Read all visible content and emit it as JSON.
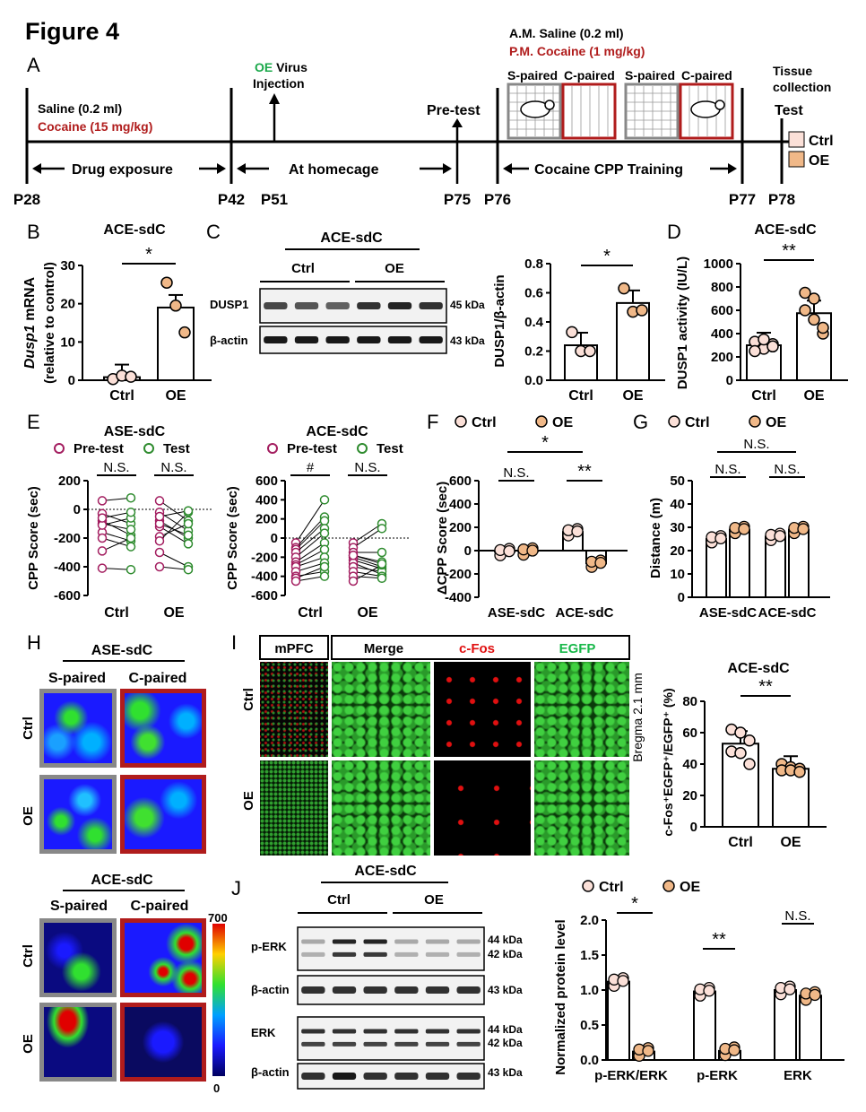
{
  "figure_title": "Figure 4",
  "panels": {
    "A": "A",
    "B": "B",
    "C": "C",
    "D": "D",
    "E": "E",
    "F": "F",
    "G": "G",
    "H": "H",
    "I": "I",
    "J": "J"
  },
  "timeline": {
    "saline_early": "Saline (0.2 ml)",
    "cocaine_early": "Cocaine (15 mg/kg)",
    "virus_prefix": "OE",
    "virus_suffix": " Virus",
    "injection": "Injection",
    "pretest": "Pre-test",
    "am_saline": "A.M. Saline (0.2 ml)",
    "pm_cocaine": "P.M. Cocaine (1 mg/kg)",
    "s_paired": "S-paired",
    "c_paired": "C-paired",
    "tissue1": "Tissue",
    "tissue2": "collection",
    "test": "Test",
    "seg1": "Drug exposure",
    "seg2": "At homecage",
    "seg3": "Cocaine CPP Training",
    "days": [
      "P28",
      "P42",
      "P51",
      "P75",
      "P76",
      "P77",
      "P78"
    ],
    "legend": [
      "Ctrl",
      "OE"
    ]
  },
  "colors": {
    "ctrl_fill": "#fbe0d8",
    "oe_fill": "#f0b888",
    "pretest": "#a31d5f",
    "test": "#2e8b2e",
    "cocaine_red": "#b01c1c",
    "virus_green": "#1aa84a"
  },
  "panel_B": {
    "title": "ACE-sdC",
    "ylabel_italic": "Dusp1",
    "ylabel_rest": " mRNA",
    "ylabel2": "(relative to control)",
    "yticks": [
      "0",
      "10",
      "20",
      "30"
    ],
    "x": [
      "Ctrl",
      "OE"
    ],
    "sig": "*"
  },
  "panel_C": {
    "title": "ACE-sdC",
    "groups": [
      "Ctrl",
      "OE"
    ],
    "rows": [
      "DUSP1",
      "β-actin"
    ],
    "kda": [
      "45 kDa",
      "43 kDa"
    ],
    "ylabel": "DUSP1/β-actin",
    "yticks": [
      "0.0",
      "0.2",
      "0.4",
      "0.6",
      "0.8"
    ],
    "x": [
      "Ctrl",
      "OE"
    ],
    "sig": "*"
  },
  "panel_D": {
    "title": "ACE-sdC",
    "ylabel": "DUSP1 activity (IU/L)",
    "yticks": [
      "0",
      "200",
      "400",
      "600",
      "800",
      "1000"
    ],
    "x": [
      "Ctrl",
      "OE"
    ],
    "sig": "**"
  },
  "panel_E": {
    "left_title": "ASE-sdC",
    "right_title": "ACE-sdC",
    "legend": [
      "Pre-test",
      "Test"
    ],
    "ylabel": "CPP Score (sec)",
    "left_yticks": [
      "-600",
      "-400",
      "-200",
      "0",
      "200"
    ],
    "right_yticks": [
      "-600",
      "-400",
      "-200",
      "0",
      "200",
      "400",
      "600"
    ],
    "x": [
      "Ctrl",
      "OE"
    ],
    "left_sig": [
      "N.S.",
      "N.S."
    ],
    "right_sig": [
      "#",
      "N.S."
    ]
  },
  "panel_F": {
    "legend": [
      "Ctrl",
      "OE"
    ],
    "ylabel": "ΔCPP Score (sec)",
    "yticks": [
      "-400",
      "-200",
      "0",
      "200",
      "400",
      "600"
    ],
    "x": [
      "ASE-sdC",
      "ACE-sdC"
    ],
    "sig_top": "*",
    "sig": [
      "N.S.",
      "**"
    ]
  },
  "panel_G": {
    "legend": [
      "Ctrl",
      "OE"
    ],
    "ylabel": "Distance (m)",
    "yticks": [
      "0",
      "10",
      "20",
      "30",
      "40",
      "50"
    ],
    "x": [
      "ASE-sdC",
      "ACE-sdC"
    ],
    "sig_top": "N.S.",
    "sig": [
      "N.S.",
      "N.S."
    ]
  },
  "panel_H": {
    "top_title": "ASE-sdC",
    "bottom_title": "ACE-sdC",
    "cols": [
      "S-paired",
      "C-paired"
    ],
    "rows": [
      "Ctrl",
      "OE"
    ],
    "scale": [
      "700",
      "0"
    ]
  },
  "panel_I": {
    "headers": [
      "mPFC",
      "Merge",
      "c-Fos",
      "EGFP"
    ],
    "rows": [
      "Ctrl",
      "OE"
    ],
    "bregma": "Bregma 2.1 mm",
    "title": "ACE-sdC",
    "ylabel": "c-Fos⁺EGFP⁺/EGFP⁺ (%)",
    "yticks": [
      "0",
      "20",
      "40",
      "60",
      "80"
    ],
    "x": [
      "Ctrl",
      "OE"
    ],
    "sig": "**"
  },
  "panel_J": {
    "title": "ACE-sdC",
    "groups": [
      "Ctrl",
      "OE"
    ],
    "rows": [
      "p-ERK",
      "β-actin",
      "ERK",
      "β-actin"
    ],
    "kda": [
      [
        "44 kDa",
        "42 kDa"
      ],
      [
        "43 kDa"
      ],
      [
        "44 kDa",
        "42 kDa"
      ],
      [
        "43 kDa"
      ]
    ],
    "legend": [
      "Ctrl",
      "OE"
    ],
    "ylabel": "Normalized protein level",
    "yticks": [
      "0.0",
      "0.5",
      "1.0",
      "1.5",
      "2.0"
    ],
    "x": [
      "p-ERK/ERK",
      "p-ERK",
      "ERK"
    ],
    "sig": [
      "*",
      "**",
      "N.S."
    ]
  },
  "chart_data": [
    {
      "panel": "B",
      "type": "bar",
      "categories": [
        "Ctrl",
        "OE"
      ],
      "values": [
        0.8,
        19
      ],
      "points": [
        [
          0.3,
          1.2,
          0.9
        ],
        [
          25.5,
          19.5,
          12.5
        ]
      ],
      "ylim": [
        0,
        30
      ]
    },
    {
      "panel": "C",
      "type": "bar",
      "categories": [
        "Ctrl",
        "OE"
      ],
      "values": [
        0.24,
        0.53
      ],
      "points": [
        [
          0.33,
          0.2,
          0.2
        ],
        [
          0.63,
          0.47,
          0.48
        ]
      ],
      "ylim": [
        0,
        0.8
      ]
    },
    {
      "panel": "D",
      "type": "bar",
      "categories": [
        "Ctrl",
        "OE"
      ],
      "values": [
        300,
        575
      ],
      "points": [
        [
          330,
          270,
          310,
          250,
          350,
          290
        ],
        [
          750,
          520,
          400,
          600,
          700,
          450
        ]
      ],
      "ylim": [
        0,
        1000
      ]
    },
    {
      "panel": "E-left",
      "type": "line",
      "categories": [
        "Ctrl",
        "OE"
      ],
      "pairs": {
        "Ctrl": [
          [
            60,
            80
          ],
          [
            -30,
            -100
          ],
          [
            -80,
            -180
          ],
          [
            -100,
            -140
          ],
          [
            -160,
            -220
          ],
          [
            -200,
            -260
          ],
          [
            -290,
            -200
          ],
          [
            -410,
            -420
          ],
          [
            -110,
            -60
          ],
          [
            -60,
            -20
          ]
        ],
        "OE": [
          [
            60,
            -80
          ],
          [
            -20,
            -150
          ],
          [
            -80,
            -200
          ],
          [
            -120,
            -240
          ],
          [
            -190,
            -100
          ],
          [
            -220,
            -20
          ],
          [
            -300,
            -400
          ],
          [
            -400,
            -420
          ],
          [
            -100,
            -180
          ],
          [
            -50,
            -10
          ]
        ]
      },
      "ylim": [
        -600,
        200
      ]
    },
    {
      "panel": "E-right",
      "type": "line",
      "categories": [
        "Ctrl",
        "OE"
      ],
      "pairs": {
        "Ctrl": [
          [
            -50,
            400
          ],
          [
            -100,
            220
          ],
          [
            -120,
            180
          ],
          [
            -150,
            100
          ],
          [
            -200,
            50
          ],
          [
            -250,
            -50
          ],
          [
            -280,
            -120
          ],
          [
            -300,
            -200
          ],
          [
            -350,
            -260
          ],
          [
            -400,
            -350
          ],
          [
            -420,
            -300
          ],
          [
            -450,
            -400
          ]
        ],
        "OE": [
          [
            -50,
            150
          ],
          [
            -100,
            100
          ],
          [
            -150,
            -150
          ],
          [
            -180,
            -250
          ],
          [
            -200,
            -300
          ],
          [
            -230,
            -320
          ],
          [
            -260,
            -380
          ],
          [
            -300,
            -350
          ],
          [
            -350,
            -400
          ],
          [
            -400,
            -420
          ],
          [
            -450,
            -280
          ],
          [
            -180,
            -270
          ]
        ]
      },
      "ylim": [
        -600,
        600
      ]
    },
    {
      "panel": "F",
      "type": "bar",
      "categories": [
        "ASE-sdC",
        "ACE-sdC"
      ],
      "series": [
        {
          "name": "Ctrl",
          "values": [
            -10,
            160
          ]
        },
        {
          "name": "OE",
          "values": [
            -5,
            -110
          ]
        }
      ],
      "ylim": [
        -400,
        600
      ]
    },
    {
      "panel": "G",
      "type": "bar",
      "categories": [
        "ASE-sdC",
        "ACE-sdC"
      ],
      "series": [
        {
          "name": "Ctrl",
          "values": [
            25,
            26
          ]
        },
        {
          "name": "OE",
          "values": [
            29,
            29
          ]
        }
      ],
      "ylim": [
        0,
        50
      ]
    },
    {
      "panel": "I",
      "type": "bar",
      "categories": [
        "Ctrl",
        "OE"
      ],
      "values": [
        53,
        37
      ],
      "points": [
        [
          62,
          60,
          55,
          48,
          47,
          40
        ],
        [
          40,
          38,
          37,
          36,
          36,
          35
        ]
      ],
      "ylim": [
        0,
        80
      ]
    },
    {
      "panel": "J",
      "type": "bar",
      "categories": [
        "p-ERK/ERK",
        "p-ERK",
        "ERK"
      ],
      "series": [
        {
          "name": "Ctrl",
          "values": [
            1.12,
            0.98,
            1.0
          ]
        },
        {
          "name": "OE",
          "values": [
            0.12,
            0.13,
            0.92
          ]
        }
      ],
      "ylim": [
        0,
        2.0
      ]
    }
  ]
}
